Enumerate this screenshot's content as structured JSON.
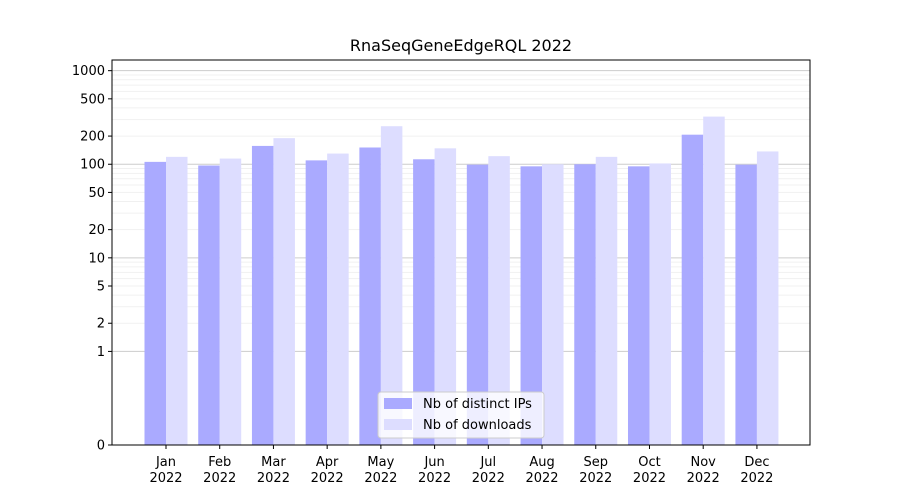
{
  "chart_data": {
    "type": "bar",
    "title": "RnaSeqGeneEdgeRQL 2022",
    "xlabel": "",
    "ylabel": "",
    "yscale": "symlog",
    "ylim": [
      0,
      1300
    ],
    "grid": true,
    "legend_position": "bottom-center",
    "categories": [
      [
        "Jan",
        "2022"
      ],
      [
        "Feb",
        "2022"
      ],
      [
        "Mar",
        "2022"
      ],
      [
        "Apr",
        "2022"
      ],
      [
        "May",
        "2022"
      ],
      [
        "Jun",
        "2022"
      ],
      [
        "Jul",
        "2022"
      ],
      [
        "Aug",
        "2022"
      ],
      [
        "Sep",
        "2022"
      ],
      [
        "Oct",
        "2022"
      ],
      [
        "Nov",
        "2022"
      ],
      [
        "Dec",
        "2022"
      ]
    ],
    "y_ticks": [
      0,
      1,
      2,
      5,
      10,
      20,
      50,
      100,
      200,
      500,
      1000
    ],
    "y_tick_labels": [
      "0",
      "1",
      "2",
      "5",
      "10",
      "20",
      "50",
      "100",
      "200",
      "500",
      "1000"
    ],
    "series": [
      {
        "name": "Nb of distinct IPs",
        "color": "#aaaaff",
        "values": [
          106,
          97,
          157,
          110,
          151,
          113,
          99,
          95,
          100,
          95,
          207,
          99
        ]
      },
      {
        "name": "Nb of downloads",
        "color": "#ddddff",
        "values": [
          120,
          115,
          190,
          130,
          255,
          148,
          122,
          100,
          120,
          102,
          323,
          137
        ]
      }
    ]
  }
}
